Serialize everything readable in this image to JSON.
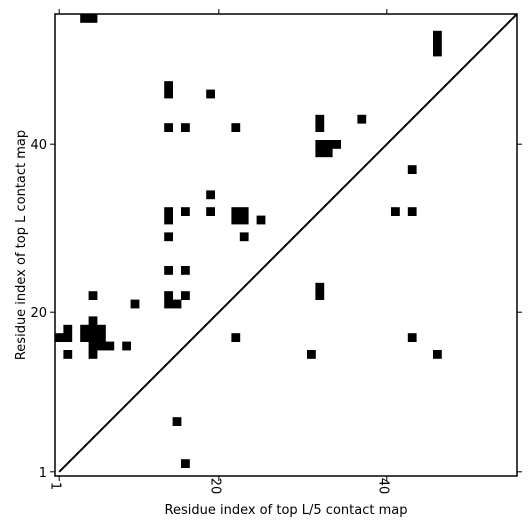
{
  "chart_data": {
    "type": "heatmap",
    "xlabel": "Residue index of top L/5 contact map",
    "ylabel": "Residue index of top L contact map",
    "xlim": [
      0.5,
      55.5
    ],
    "ylim": [
      0.5,
      55.5
    ],
    "x_ticks": [
      1,
      20,
      40
    ],
    "y_ticks": [
      1,
      20,
      40
    ],
    "x_tick_labels": [
      "1",
      "20",
      "40"
    ],
    "y_tick_labels": [
      "1",
      "20",
      "40"
    ],
    "diagonal": true,
    "cell_color": "#000000",
    "cells": [
      [
        4,
        55
      ],
      [
        5,
        55
      ],
      [
        46,
        53
      ],
      [
        46,
        52
      ],
      [
        46,
        51
      ],
      [
        14,
        47
      ],
      [
        14,
        46
      ],
      [
        19,
        46
      ],
      [
        14,
        42
      ],
      [
        16,
        42
      ],
      [
        22,
        42
      ],
      [
        32,
        43
      ],
      [
        32,
        42
      ],
      [
        37,
        43
      ],
      [
        32,
        40
      ],
      [
        33,
        40
      ],
      [
        34,
        40
      ],
      [
        32,
        39
      ],
      [
        33,
        39
      ],
      [
        43,
        37
      ],
      [
        19,
        34
      ],
      [
        14,
        32
      ],
      [
        14,
        31
      ],
      [
        16,
        32
      ],
      [
        19,
        32
      ],
      [
        22,
        32
      ],
      [
        23,
        32
      ],
      [
        22,
        31
      ],
      [
        23,
        31
      ],
      [
        25,
        31
      ],
      [
        41,
        32
      ],
      [
        43,
        32
      ],
      [
        14,
        29
      ],
      [
        23,
        29
      ],
      [
        14,
        25
      ],
      [
        16,
        25
      ],
      [
        5,
        22
      ],
      [
        14,
        22
      ],
      [
        14,
        21
      ],
      [
        15,
        21
      ],
      [
        16,
        22
      ],
      [
        10,
        21
      ],
      [
        32,
        23
      ],
      [
        32,
        22
      ],
      [
        5,
        19
      ],
      [
        4,
        18
      ],
      [
        4,
        17
      ],
      [
        5,
        18
      ],
      [
        6,
        18
      ],
      [
        5,
        17
      ],
      [
        6,
        17
      ],
      [
        2,
        18
      ],
      [
        2,
        17
      ],
      [
        1,
        17
      ],
      [
        5,
        16
      ],
      [
        6,
        16
      ],
      [
        7,
        16
      ],
      [
        5,
        15
      ],
      [
        9,
        16
      ],
      [
        2,
        15
      ],
      [
        22,
        17
      ],
      [
        31,
        15
      ],
      [
        43,
        17
      ],
      [
        46,
        15
      ],
      [
        15,
        7
      ],
      [
        16,
        2
      ]
    ]
  }
}
